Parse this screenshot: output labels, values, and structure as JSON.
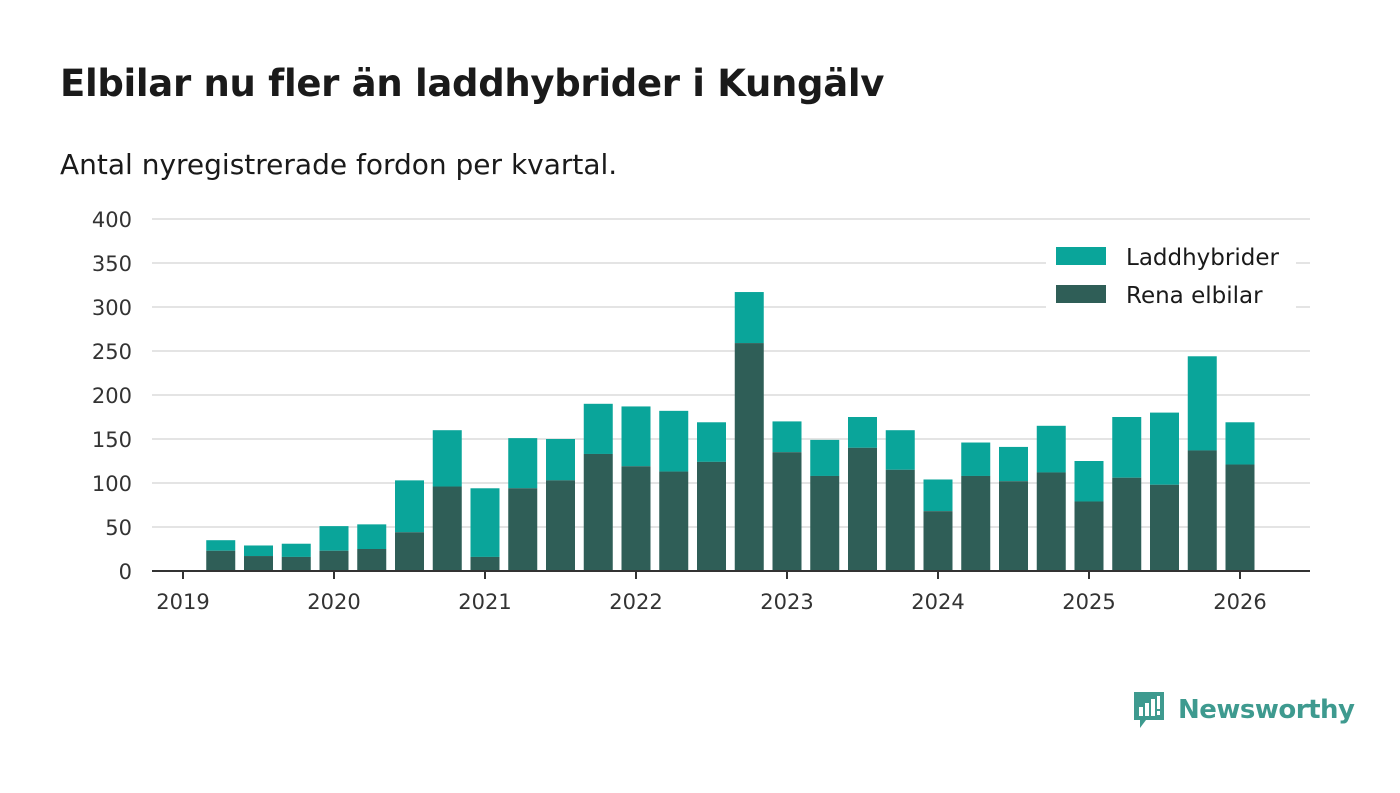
{
  "header": {
    "title": "Elbilar nu fler än laddhybrider i Kungälv",
    "subtitle": "Antal nyregistrerade fordon per kvartal."
  },
  "colors": {
    "laddhybrider": "#0aa59a",
    "elbilar": "#2f5e57",
    "grid": "#dcdcdc",
    "axis": "#333333",
    "brand": "#3e9a8f"
  },
  "brand": {
    "name": "Newsworthy",
    "icon": "newsworthy-logo-icon"
  },
  "chart_data": {
    "type": "bar",
    "stacked": true,
    "title": "Elbilar nu fler än laddhybrider i Kungälv",
    "subtitle": "Antal nyregistrerade fordon per kvartal.",
    "xlabel": "",
    "ylabel": "",
    "ylim": [
      0,
      400
    ],
    "yticks": [
      0,
      50,
      100,
      150,
      200,
      250,
      300,
      350,
      400
    ],
    "xticks": [
      "2019",
      "2020",
      "2021",
      "2022",
      "2023",
      "2024",
      "2025",
      "2026"
    ],
    "xrange": [
      2019.0,
      2026.5
    ],
    "grid": true,
    "legend_position": "top-right",
    "x": [
      2019.25,
      2019.5,
      2019.75,
      2020.0,
      2020.25,
      2020.5,
      2020.75,
      2021.0,
      2021.25,
      2021.5,
      2021.75,
      2022.0,
      2022.25,
      2022.5,
      2022.75,
      2023.0,
      2023.25,
      2023.5,
      2023.75,
      2024.0,
      2024.25,
      2024.5,
      2024.75,
      2025.0,
      2025.25,
      2025.5,
      2025.75,
      2026.0
    ],
    "series": [
      {
        "name": "Rena elbilar",
        "values": [
          23,
          17,
          16,
          23,
          25,
          44,
          96,
          16,
          94,
          103,
          133,
          119,
          113,
          124,
          259,
          135,
          108,
          140,
          115,
          68,
          108,
          102,
          112,
          79,
          106,
          98,
          137,
          121
        ]
      },
      {
        "name": "Laddhybrider",
        "values": [
          12,
          12,
          15,
          28,
          28,
          59,
          64,
          78,
          57,
          47,
          57,
          68,
          69,
          45,
          58,
          35,
          41,
          35,
          45,
          36,
          38,
          39,
          53,
          46,
          69,
          82,
          107,
          48
        ]
      }
    ],
    "legend": [
      "Laddhybrider",
      "Rena elbilar"
    ]
  }
}
